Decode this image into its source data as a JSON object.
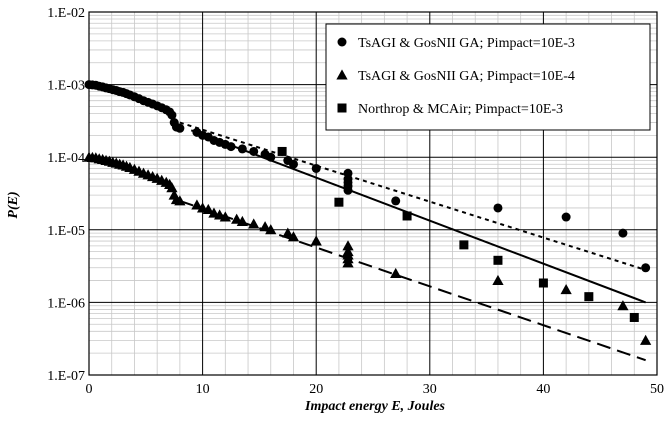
{
  "chart_data": {
    "type": "scatter",
    "title": "",
    "xlabel": "Impact energy E, Joules",
    "ylabel": "P(E)",
    "xlim": [
      0,
      50
    ],
    "ylim": [
      1e-07,
      0.01
    ],
    "yscale": "log",
    "grid": true,
    "legend_position": "top-right",
    "x_ticks": [
      0,
      10,
      20,
      30,
      40,
      50
    ],
    "x_tick_labels": [
      "0",
      "10",
      "20",
      "30",
      "40",
      "50"
    ],
    "y_ticks": [
      1e-07,
      1e-06,
      1e-05,
      0.0001,
      0.001,
      0.01
    ],
    "y_tick_labels": [
      "1.E-07",
      "1.E-06",
      "1.E-05",
      "1.E-04",
      "1.E-03",
      "1.E-02"
    ],
    "series": [
      {
        "name": "TsAGI & GosNII GA; Pimpact=10E-3",
        "marker": "circle",
        "color": "#000000",
        "points": [
          [
            0,
            0.001
          ],
          [
            0.3,
            0.00099
          ],
          [
            0.6,
            0.00098
          ],
          [
            0.9,
            0.00095
          ],
          [
            1.2,
            0.00093
          ],
          [
            1.5,
            0.0009
          ],
          [
            1.8,
            0.00088
          ],
          [
            2.1,
            0.00085
          ],
          [
            2.4,
            0.00083
          ],
          [
            2.7,
            0.0008
          ],
          [
            3.0,
            0.00078
          ],
          [
            3.3,
            0.00075
          ],
          [
            3.6,
            0.00072
          ],
          [
            4.0,
            0.00068
          ],
          [
            4.4,
            0.00064
          ],
          [
            4.8,
            0.0006
          ],
          [
            5.2,
            0.00057
          ],
          [
            5.6,
            0.00054
          ],
          [
            6.0,
            0.00051
          ],
          [
            6.4,
            0.00048
          ],
          [
            6.8,
            0.00045
          ],
          [
            7.1,
            0.00042
          ],
          [
            7.3,
            0.00038
          ],
          [
            7.5,
            0.0003
          ],
          [
            7.7,
            0.00026
          ],
          [
            8.0,
            0.00025
          ],
          [
            9.5,
            0.00022
          ],
          [
            10.0,
            0.0002
          ],
          [
            10.5,
            0.00019
          ],
          [
            11.0,
            0.00017
          ],
          [
            11.5,
            0.00016
          ],
          [
            12.0,
            0.00015
          ],
          [
            12.5,
            0.00014
          ],
          [
            13.5,
            0.00013
          ],
          [
            14.5,
            0.00012
          ],
          [
            15.5,
            0.00011
          ],
          [
            16.0,
            0.0001
          ],
          [
            17.5,
            9e-05
          ],
          [
            18.0,
            8e-05
          ],
          [
            20.0,
            7e-05
          ],
          [
            22.8,
            6e-05
          ],
          [
            22.8,
            5e-05
          ],
          [
            22.8,
            4.5e-05
          ],
          [
            22.8,
            4e-05
          ],
          [
            22.8,
            3.5e-05
          ],
          [
            27.0,
            2.5e-05
          ],
          [
            36.0,
            2e-05
          ],
          [
            42.0,
            1.5e-05
          ],
          [
            47.0,
            9e-06
          ],
          [
            49.0,
            3e-06
          ]
        ]
      },
      {
        "name": "TsAGI & GosNII GA; Pimpact=10E-4",
        "marker": "triangle",
        "color": "#000000",
        "points": [
          [
            0,
            0.0001
          ],
          [
            0.3,
            9.9e-05
          ],
          [
            0.6,
            9.8e-05
          ],
          [
            0.9,
            9.5e-05
          ],
          [
            1.2,
            9.3e-05
          ],
          [
            1.5,
            9e-05
          ],
          [
            1.8,
            8.8e-05
          ],
          [
            2.1,
            8.5e-05
          ],
          [
            2.4,
            8.3e-05
          ],
          [
            2.7,
            8e-05
          ],
          [
            3.0,
            7.8e-05
          ],
          [
            3.3,
            7.5e-05
          ],
          [
            3.6,
            7.2e-05
          ],
          [
            4.0,
            6.8e-05
          ],
          [
            4.4,
            6.4e-05
          ],
          [
            4.8,
            6e-05
          ],
          [
            5.2,
            5.7e-05
          ],
          [
            5.6,
            5.4e-05
          ],
          [
            6.0,
            5.1e-05
          ],
          [
            6.4,
            4.8e-05
          ],
          [
            6.8,
            4.5e-05
          ],
          [
            7.1,
            4.2e-05
          ],
          [
            7.3,
            3.8e-05
          ],
          [
            7.5,
            3e-05
          ],
          [
            7.7,
            2.6e-05
          ],
          [
            8.0,
            2.5e-05
          ],
          [
            9.5,
            2.2e-05
          ],
          [
            10.0,
            2e-05
          ],
          [
            10.5,
            1.9e-05
          ],
          [
            11.0,
            1.7e-05
          ],
          [
            11.5,
            1.6e-05
          ],
          [
            12.0,
            1.5e-05
          ],
          [
            13.0,
            1.4e-05
          ],
          [
            13.5,
            1.3e-05
          ],
          [
            14.5,
            1.2e-05
          ],
          [
            15.5,
            1.1e-05
          ],
          [
            16.0,
            1e-05
          ],
          [
            17.5,
            9e-06
          ],
          [
            18.0,
            8e-06
          ],
          [
            20.0,
            7e-06
          ],
          [
            22.8,
            6e-06
          ],
          [
            22.8,
            5e-06
          ],
          [
            22.8,
            4.5e-06
          ],
          [
            22.8,
            4e-06
          ],
          [
            22.8,
            3.5e-06
          ],
          [
            27.0,
            2.5e-06
          ],
          [
            36.0,
            2e-06
          ],
          [
            42.0,
            1.5e-06
          ],
          [
            47.0,
            9e-07
          ],
          [
            49.0,
            3e-07
          ]
        ]
      },
      {
        "name": "Northrop & MCAir; Pimpact=10E-3",
        "marker": "square",
        "color": "#000000",
        "points": [
          [
            17.0,
            0.00012
          ],
          [
            22.0,
            2.4e-05
          ],
          [
            28.0,
            1.55e-05
          ],
          [
            33.0,
            6.2e-06
          ],
          [
            36.0,
            3.8e-06
          ],
          [
            40.0,
            1.85e-06
          ],
          [
            44.0,
            1.2e-06
          ],
          [
            48.0,
            6.2e-07
          ]
        ]
      }
    ],
    "trend_lines": [
      {
        "style": "solid",
        "color": "#000000",
        "points": [
          [
            9,
            0.000235
          ],
          [
            49,
            1e-06
          ]
        ]
      },
      {
        "style": "short-dash",
        "color": "#000000",
        "points": [
          [
            8,
            0.0003
          ],
          [
            49,
            2.8e-06
          ]
        ]
      },
      {
        "style": "long-dash",
        "color": "#000000",
        "points": [
          [
            8,
            2.5e-05
          ],
          [
            49,
            1.6e-07
          ]
        ]
      }
    ]
  }
}
